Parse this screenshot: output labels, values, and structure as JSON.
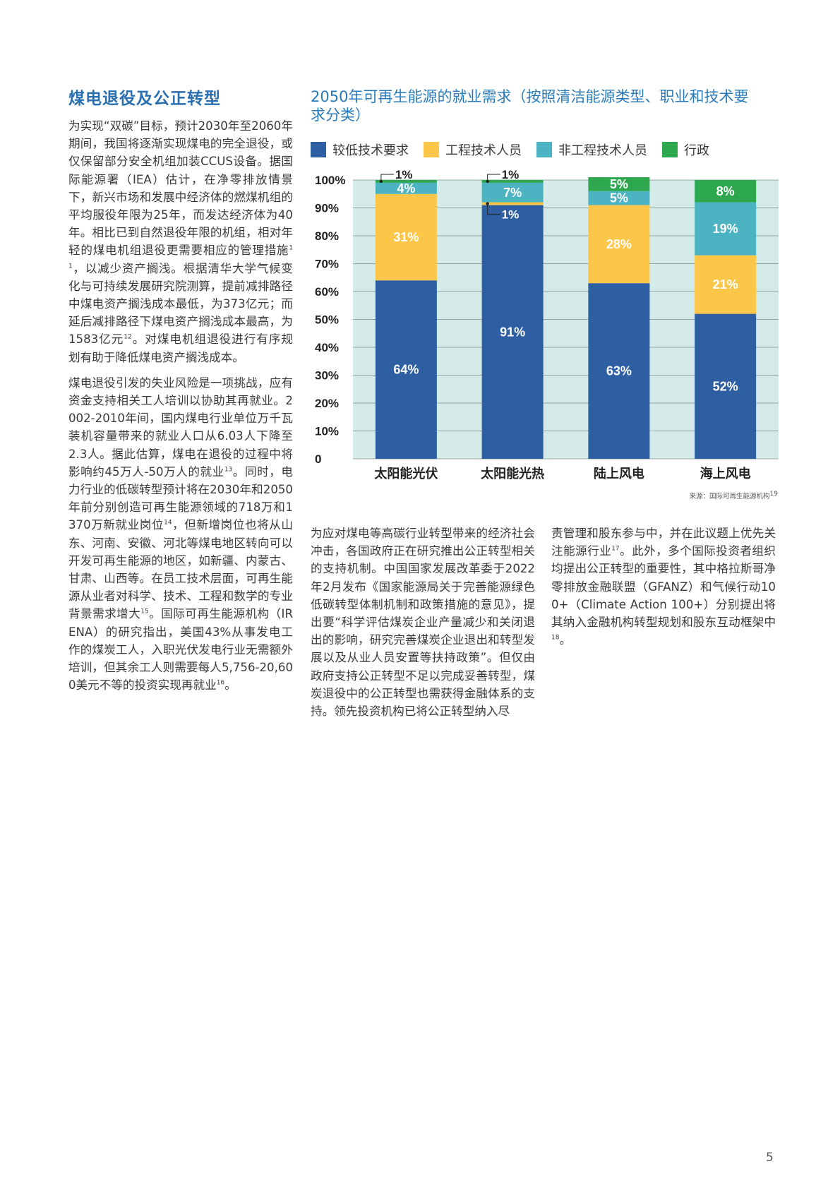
{
  "section": {
    "title": "煤电退役及公正转型"
  },
  "body": {
    "left": [
      {
        "text": "为实现“双碳”目标，预计2030年至2060年期间，我国将逐渐实现煤电的完全退役，或仅保留部分安全机组加装CCUS设备。据国际能源署（IEA）估计，在净零排放情景下，新兴市场和发展中经济体的燃煤机组的平均服役年限为25年，而发达经济体为40年。相比已到自然退役年限的机组，相对年轻的煤电机组退役更需要相应的管理措施",
        "sup1": "11",
        "text2": "，以减少资产搁浅。根据清华大学气候变化与可持续发展研究院测算，提前减排路径中煤电资产搁浅成本最低，为373亿元；而延后减排路径下煤电资产搁浅成本最高，为1583亿元",
        "sup2": "12",
        "text3": "。对煤电机组退役进行有序规划有助于降低煤电资产搁浅成本。"
      },
      {
        "text": "煤电退役引发的失业风险是一项挑战，应有资金支持相关工人培训以协助其再就业。2002-2010年间，国内煤电行业单位万千瓦装机容量带来的就业人口从6.03人下降至2.3人。据此估算，煤电在退役的过程中将影响约45万人-50万人的就业",
        "sup1": "13",
        "text2": "。同时，电力行业的低碳转型预计将在2030年和2050年前分别创造可再生能源领域的718万和1370万新就业岗位",
        "sup2": "14",
        "text3": "，但新增岗位也将从山东、河南、安徽、河北等煤电地区转向可以开发可再生能源的地区，如新疆、内蒙古、甘肃、山西等。在员工技术层面，可再生能源从业者对科学、技术、工程和数学的专业背景需求增大",
        "sup3": "15",
        "text4": "。国际可再生能源机构（IRENA）的研究指出，美国43%从事发电工作的煤炭工人，入职光伏发电行业无需额外培训，但其余工人则需要每人5,756-20,600美元不等的投资实现再就业",
        "sup4": "16",
        "text5": "。"
      }
    ],
    "mid": {
      "text": "为应对煤电等高碳行业转型带来的经济社会冲击，各国政府正在研究推出公正转型相关的支持机制。中国国家发展改革委于2022年2月发布《国家能源局关于完善能源绿色低碳转型体制机制和政策措施的意见》，提出要“科学评估煤炭企业产量减少和关闭退出的影响，研究完善煤炭企业退出和转型发展以及从业人员安置等扶持政策”。但仅由政府支持公正转型不足以完成妥善转型，煤炭退役中的公正转型也需获得金融体系的支持。领先投资机构已将公正转型纳入尽"
    },
    "right": {
      "text": "责管理和股东参与中，并在此议题上优先关注能源行业",
      "sup1": "17",
      "text2": "。此外，多个国际投资者组织均提出公正转型的重要性，其中格拉斯哥净零排放金融联盟（GFANZ）和气候行动100+（Climate Action 100+）分别提出将其纳入金融机构转型规划和股东互动框架中",
      "sup2": "18",
      "text3": "。"
    }
  },
  "chart_data": {
    "type": "bar",
    "stacked": true,
    "title": "2050年可再生能源的就业需求（按照清洁能源类型、职业和技术要求分类）",
    "categories": [
      "太阳能光伏",
      "太阳能光热",
      "陆上风电",
      "海上风电"
    ],
    "series": [
      {
        "name": "较低技术要求",
        "color": "#2e5fa3",
        "values": [
          64,
          91,
          63,
          52
        ]
      },
      {
        "name": "工程技术人员",
        "color": "#fcc748",
        "values": [
          31,
          1,
          28,
          21
        ]
      },
      {
        "name": "非工程技术人员",
        "color": "#4bb3c2",
        "values": [
          4,
          7,
          5,
          19
        ]
      },
      {
        "name": "行政",
        "color": "#2ea84f",
        "values": [
          1,
          1,
          5,
          8
        ]
      }
    ],
    "data_labels": [
      [
        "64%",
        "31%",
        "4%",
        "1%"
      ],
      [
        "91%",
        "1%",
        "7%",
        "1%"
      ],
      [
        "63%",
        "28%",
        "5%",
        "5%"
      ],
      [
        "52%",
        "21%",
        "19%",
        "8%"
      ]
    ],
    "yticks": [
      "0",
      "10%",
      "20%",
      "30%",
      "40%",
      "50%",
      "60%",
      "70%",
      "80%",
      "90%",
      "100%"
    ],
    "ylim": [
      0,
      100
    ],
    "plot_background": "#d5ebe9",
    "grid": true,
    "source": "来源：国际可再生能源机构",
    "source_sup": "19"
  },
  "page_number": "5"
}
